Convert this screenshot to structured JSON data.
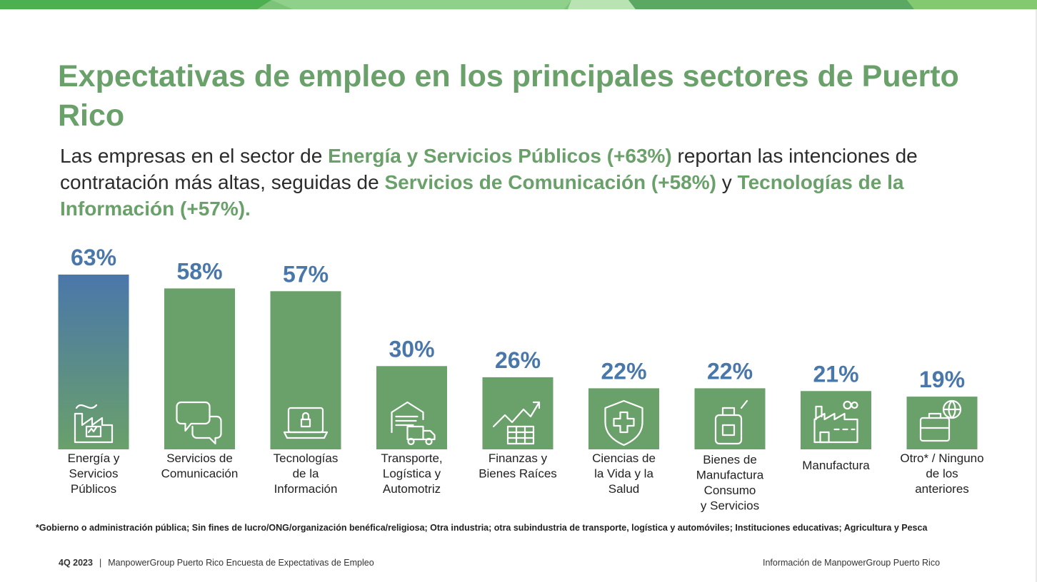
{
  "colors": {
    "brand_green": "#6aa06a",
    "bar_green": "#6aa06a",
    "value_blue": "#4a77aa",
    "highlight_gradient_top": "#4a77aa",
    "highlight_gradient_bottom": "#6aa06a"
  },
  "title": "Expectativas de empleo en los principales sectores de Puerto Rico",
  "subtitle": {
    "p1": "Las empresas en el sector de ",
    "h1": "Energía y Servicios Públicos (+63%)",
    "p2": " reportan las intenciones de contratación más altas, seguidas de ",
    "h2": "Servicios de Comunicación (+58%)",
    "p3": " y ",
    "h3": "Tecnologías de la Información (+57%)."
  },
  "chart_data": {
    "type": "bar",
    "title": "",
    "xlabel": "",
    "ylabel": "",
    "ylim": [
      0,
      63
    ],
    "grid": false,
    "value_suffix": "%",
    "categories": [
      [
        "Energía y",
        "Servicios",
        "Públicos"
      ],
      [
        "Servicios de",
        "Comunicación"
      ],
      [
        "Tecnologías",
        "de la",
        "Información"
      ],
      [
        "Transporte,",
        "Logística y",
        "Automotriz"
      ],
      [
        "Finanzas y",
        "Bienes Raíces"
      ],
      [
        "Ciencias de",
        "la Vida y la",
        "Salud"
      ],
      [
        "Bienes de",
        "Manufactura",
        "Consumo",
        "y Servicios"
      ],
      [
        "Manufactura"
      ],
      [
        "Otro* / Ninguno",
        "de los",
        "anteriores"
      ]
    ],
    "values": [
      63,
      58,
      57,
      30,
      26,
      22,
      22,
      21,
      19
    ],
    "data_labels": [
      "63%",
      "58%",
      "57%",
      "30%",
      "26%",
      "22%",
      "22%",
      "21%",
      "19%"
    ],
    "icons": [
      "energy-factory-icon",
      "chat-bubbles-icon",
      "laptop-lock-icon",
      "warehouse-truck-icon",
      "growth-chart-icon",
      "health-shield-icon",
      "consumer-goods-icon",
      "factory-icon",
      "briefcase-globe-icon"
    ],
    "highlight_index": 0
  },
  "footnote": "*Gobierno o administración pública; Sin fines de lucro/ONG/organización benéfica/religiosa; Otra industria; otra subindustria de transporte, logística y automóviles; Instituciones educativas; Agricultura y Pesca",
  "footer": {
    "quarter": "4Q 2023",
    "separator": "|",
    "survey": "ManpowerGroup Puerto Rico Encuesta de Expectativas de Empleo",
    "right": "Información de ManpowerGroup Puerto Rico"
  }
}
